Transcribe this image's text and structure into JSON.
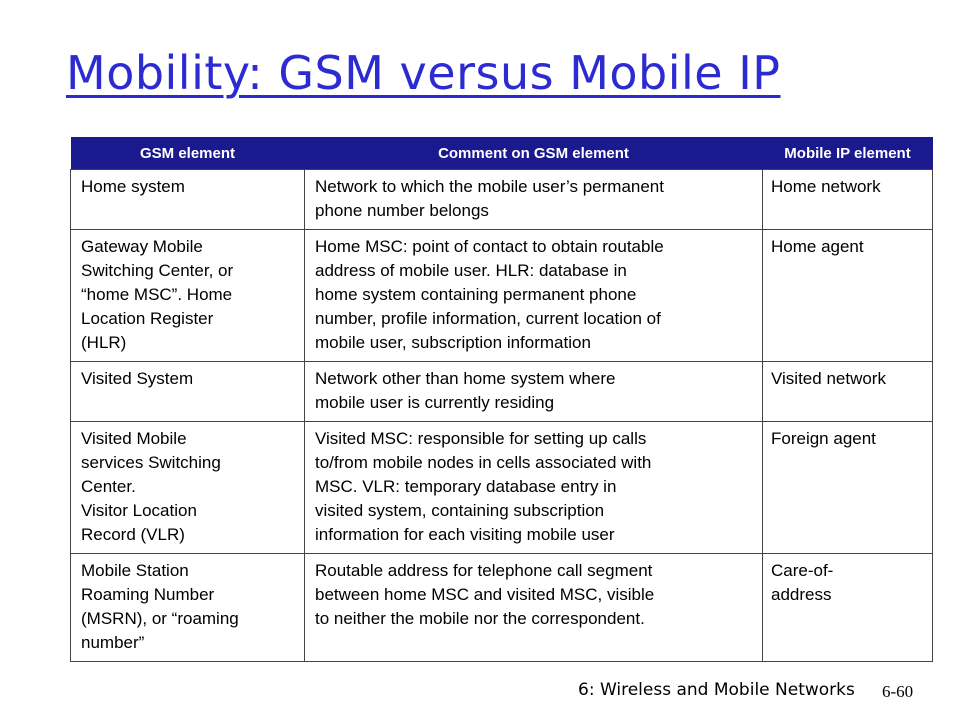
{
  "slide": {
    "title": "Mobility: GSM versus Mobile IP",
    "footer": "6: Wireless and Mobile Networks",
    "page_number": "6-60"
  },
  "table": {
    "headers": [
      "GSM element",
      "Comment on GSM element",
      "Mobile IP element"
    ],
    "rows": [
      {
        "gsm": [
          "Home system"
        ],
        "comment": [
          "Network to which the mobile user’s permanent",
          "phone number belongs"
        ],
        "mobile_ip": [
          "Home network"
        ]
      },
      {
        "gsm": [
          "Gateway Mobile",
          "Switching Center, or",
          "“home MSC”. Home",
          "Location Register",
          "(HLR)"
        ],
        "comment": [
          "Home MSC: point of contact to obtain routable",
          "address of mobile user. HLR: database in",
          "home system containing permanent phone",
          "number, profile information, current location of",
          "mobile user, subscription information"
        ],
        "mobile_ip": [
          "Home agent"
        ]
      },
      {
        "gsm": [
          "Visited System"
        ],
        "comment": [
          "Network other than home system where",
          "mobile user is currently residing"
        ],
        "mobile_ip": [
          "Visited network"
        ]
      },
      {
        "gsm": [
          "Visited Mobile",
          "services Switching",
          "Center.",
          "Visitor Location",
          "Record (VLR)"
        ],
        "comment": [
          "Visited MSC: responsible for setting up calls",
          "to/from mobile nodes in cells associated with",
          "MSC. VLR: temporary database entry in",
          "visited system, containing subscription",
          "information  for each visiting mobile user"
        ],
        "mobile_ip": [
          "Foreign agent"
        ]
      },
      {
        "gsm": [
          "Mobile Station",
          "Roaming Number",
          "(MSRN), or “roaming",
          "number”"
        ],
        "comment": [
          "Routable address for telephone call segment",
          "between home MSC and  visited MSC, visible",
          "to neither the mobile nor the correspondent."
        ],
        "mobile_ip": [
          "Care-of-",
          "address"
        ]
      }
    ]
  }
}
